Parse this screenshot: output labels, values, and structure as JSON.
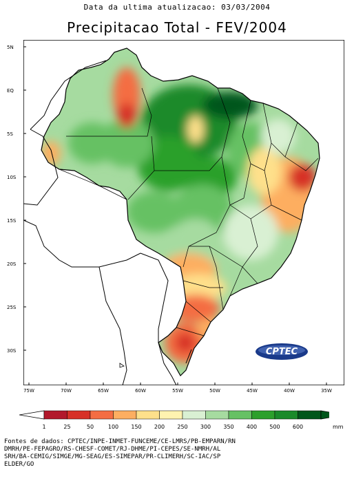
{
  "header": {
    "update_line": "Data da ultima atualizacao: 03/03/2004",
    "title": "Precipitacao Total  - FEV/2004"
  },
  "map": {
    "lat_labels": [
      "5N",
      "EQ",
      "5S",
      "10S",
      "15S",
      "20S",
      "25S",
      "30S"
    ],
    "lon_labels": [
      "75W",
      "70W",
      "65W",
      "60W",
      "55W",
      "50W",
      "45W",
      "40W",
      "35W"
    ],
    "logo_text": "CPTEC"
  },
  "legend": {
    "labels": [
      "1",
      "25",
      "50",
      "100",
      "150",
      "200",
      "250",
      "300",
      "350",
      "400",
      "500",
      "600"
    ],
    "colors": [
      "#b2182b",
      "#d73027",
      "#f46d43",
      "#fdae61",
      "#fee08b",
      "#fff3b0",
      "#d9f0d3",
      "#a6dba0",
      "#66c164",
      "#2ca02c",
      "#1a8a2a",
      "#00561b"
    ],
    "unit": "mm"
  },
  "sources_text": "Fontes de dados: CPTEC/INPE-INMET-FUNCEME/CE-LMRS/PB-EMPARN/RN\nDMRH/PE-FEPAGRO/RS-CHESF-COMET/RJ-DHME/PI-CEPES/SE-NMRH/AL\nSRH/BA-CEMIG/SIMGE/MG-SEAG/ES-SIMEPAR/PR-CLIMERH/SC-IAC/SP\nELDER/GO"
}
